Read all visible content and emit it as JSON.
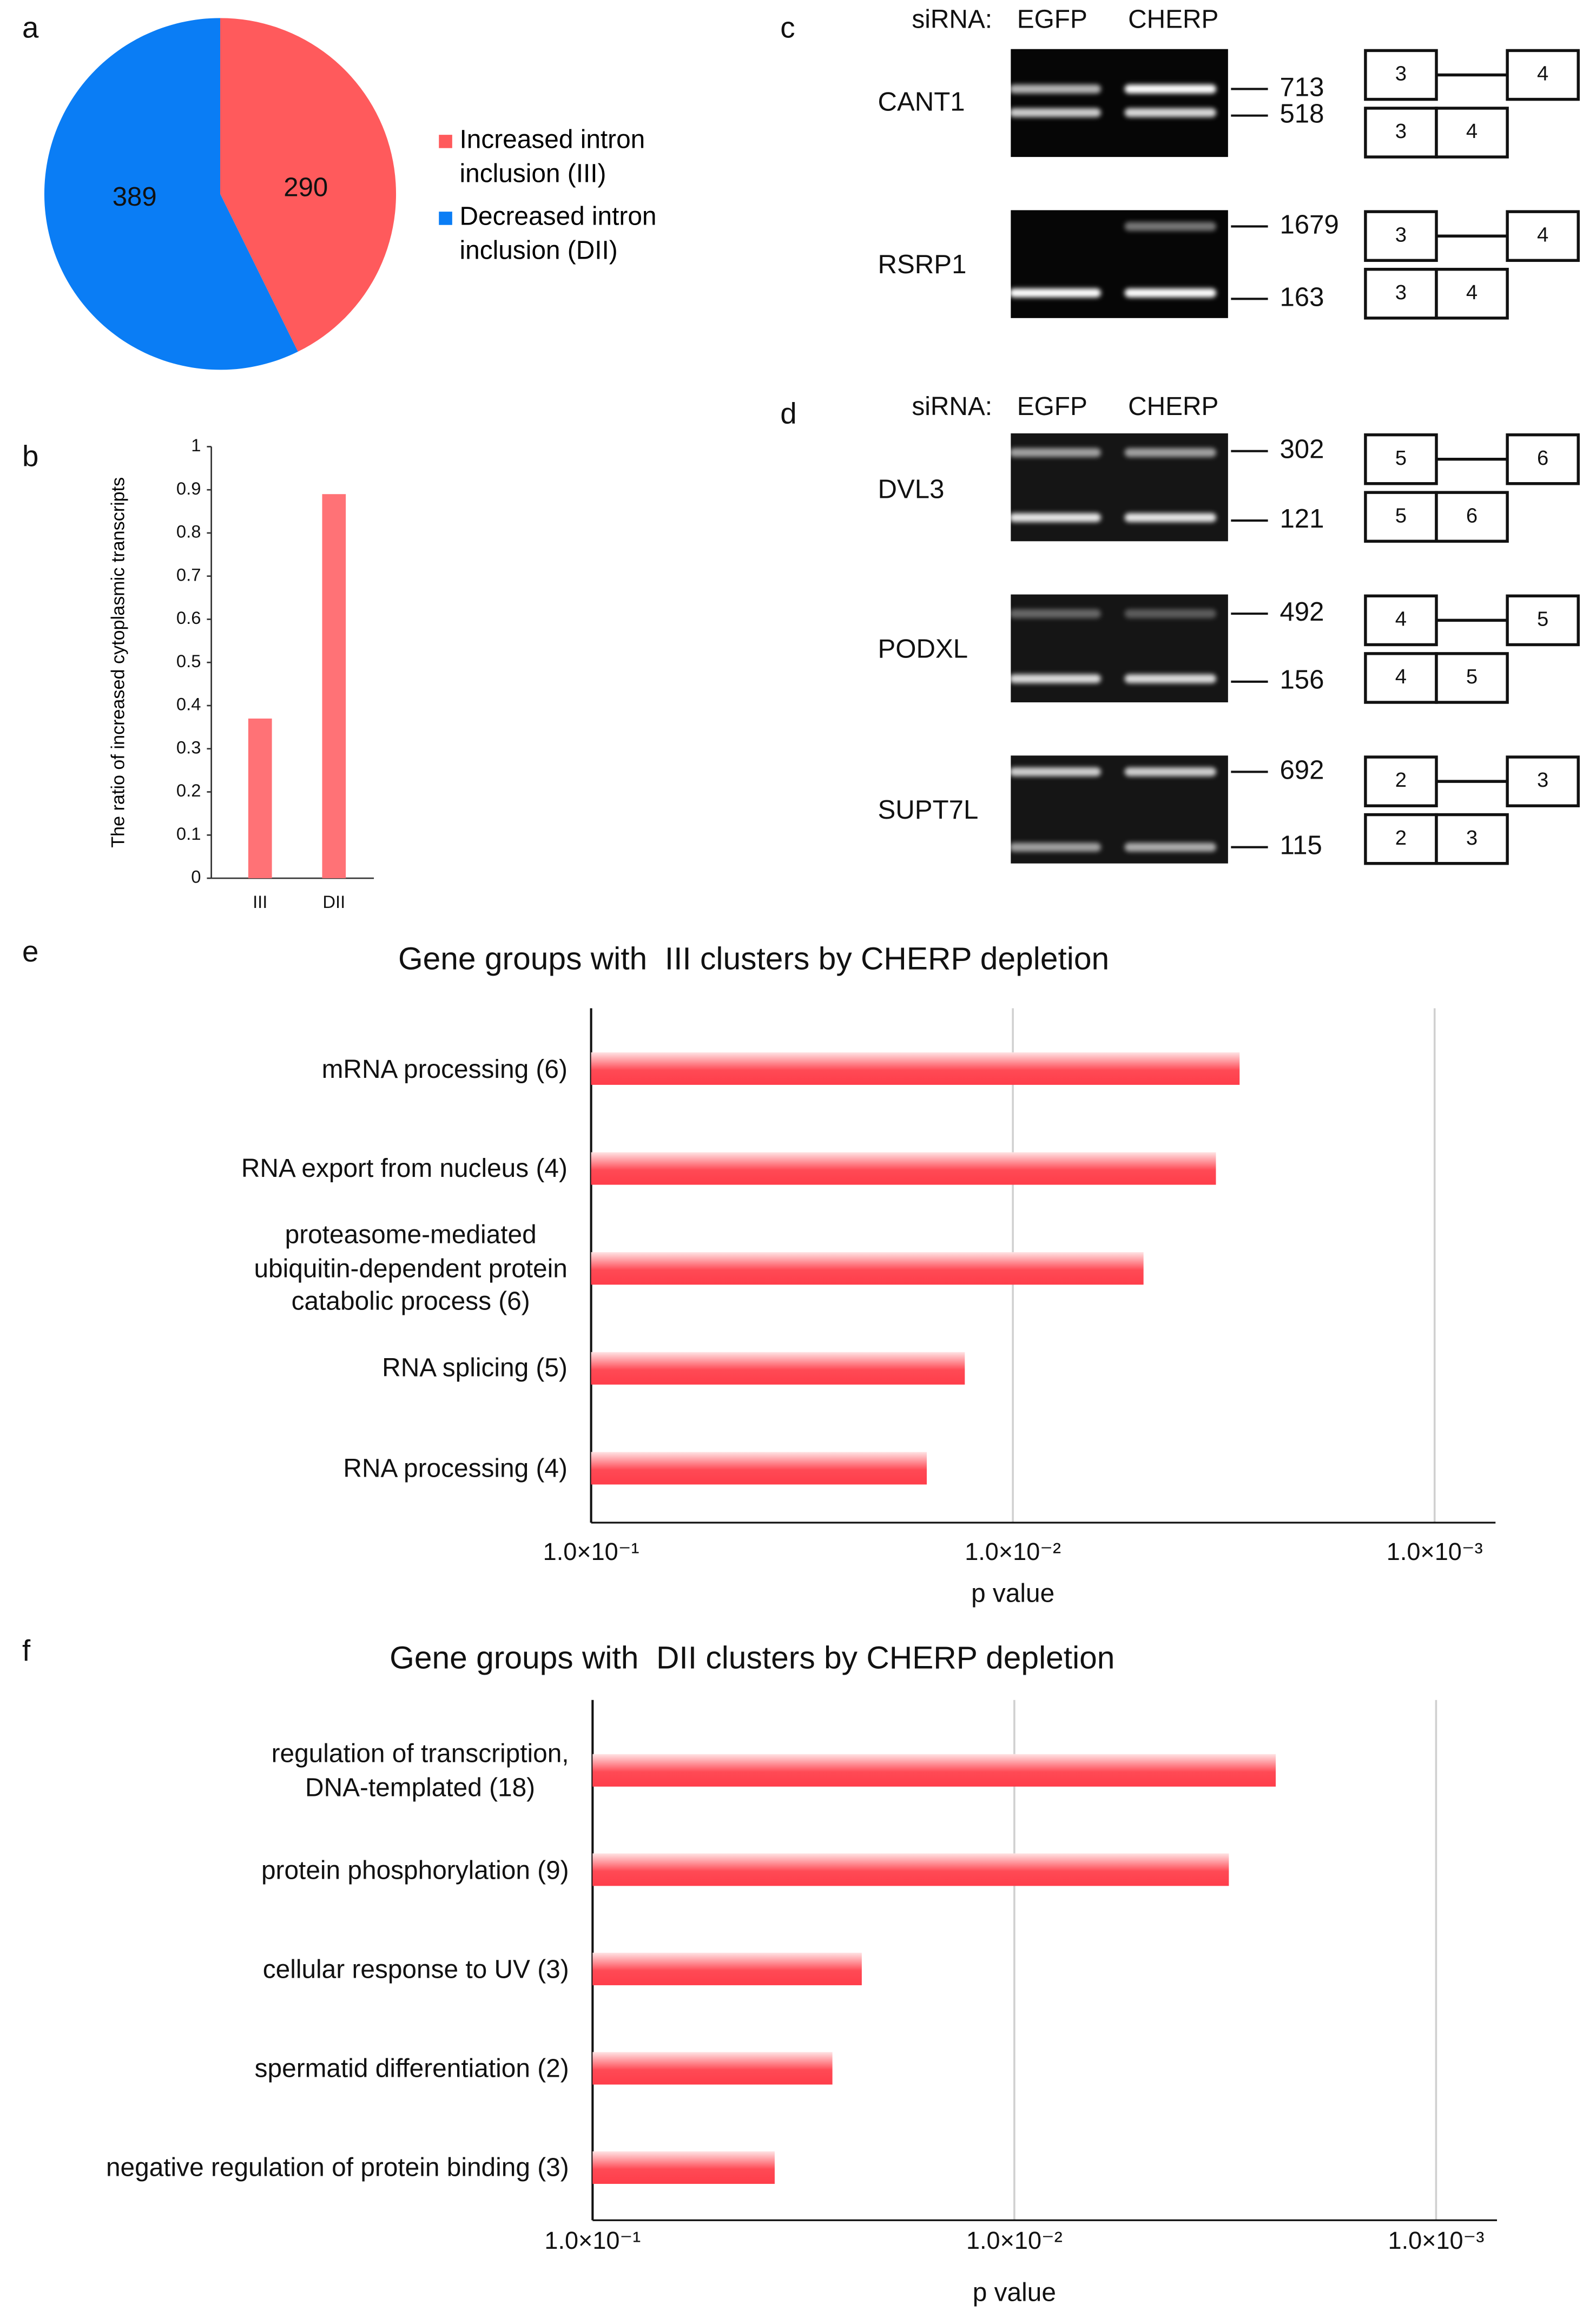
{
  "panel_labels": [
    "a",
    "b",
    "c",
    "d",
    "e",
    "f"
  ],
  "chart_data": [
    {
      "type": "pie",
      "categories": [
        "Increased intron\ninclusion (III)",
        "Decreased intron\ninclusion (DII)"
      ],
      "values": [
        290,
        389
      ],
      "colors": [
        "#ff5a5c",
        "#0a7df5"
      ]
    },
    {
      "type": "bar",
      "ylabel": "The ratio of increased\ncytoplasmic transcripts",
      "categories": [
        "III",
        "DII"
      ],
      "values": [
        0.37,
        0.89
      ],
      "color": "#ff7276",
      "ylim": [
        0,
        1
      ],
      "yticks": [
        0,
        0.1,
        0.2,
        0.3,
        0.4,
        0.5,
        0.6,
        0.7,
        0.8,
        0.9,
        1
      ]
    },
    {
      "type": "hbar",
      "title": "Gene groups with  III clusters by CHERP depletion",
      "xlabel": "p value",
      "categories": [
        "mRNA processing (6)",
        "RNA export from nucleus (4)",
        "proteasome-mediated\nubiquitin-dependent protein\ncatabolic process (6)",
        "RNA splicing (5)",
        "RNA processing (4)"
      ],
      "values": [
        0.0029,
        0.0033,
        0.0049,
        0.013,
        0.016
      ],
      "color": "#ff3d4a",
      "xscale": "log",
      "xlim": [
        0.1,
        0.0007
      ],
      "xticks": [
        {
          "value": 0.1,
          "label": "1.0×10⁻¹"
        },
        {
          "value": 0.01,
          "label": "1.0×10⁻²"
        },
        {
          "value": 0.001,
          "label": "1.0×10⁻³"
        }
      ],
      "grid": true
    },
    {
      "type": "hbar",
      "title": "Gene groups with  DII clusters by CHERP depletion",
      "xlabel": "p value",
      "categories": [
        "regulation of transcription,\nDNA-templated (18)",
        "protein phosphorylation (9)",
        "cellular response to UV (3)",
        "spermatid differentiation (2)",
        "negative regulation of protein binding (3)"
      ],
      "values": [
        0.0024,
        0.0031,
        0.023,
        0.027,
        0.037
      ],
      "color": "#ff3d4a",
      "xscale": "log",
      "xlim": [
        0.1,
        0.0007
      ],
      "xticks": [
        {
          "value": 0.1,
          "label": "1.0×10⁻¹"
        },
        {
          "value": 0.01,
          "label": "1.0×10⁻²"
        },
        {
          "value": 0.001,
          "label": "1.0×10⁻³"
        }
      ],
      "grid": true
    }
  ],
  "gels": [
    {
      "header": [
        "siRNA:",
        "EGFP",
        "CHERP"
      ],
      "genes": [
        {
          "name": "CANT1",
          "sizes": [
            713,
            518
          ],
          "exons": [
            3,
            4
          ]
        },
        {
          "name": "RSRP1",
          "sizes": [
            1679,
            163
          ],
          "exons": [
            3,
            4
          ]
        }
      ]
    },
    {
      "header": [
        "siRNA:",
        "EGFP",
        "CHERP"
      ],
      "genes": [
        {
          "name": "DVL3",
          "sizes": [
            302,
            121
          ],
          "exons": [
            5,
            6
          ]
        },
        {
          "name": "PODXL",
          "sizes": [
            492,
            156
          ],
          "exons": [
            4,
            5
          ]
        },
        {
          "name": "SUPT7L",
          "sizes": [
            692,
            115
          ],
          "exons": [
            2,
            3
          ]
        }
      ]
    }
  ]
}
